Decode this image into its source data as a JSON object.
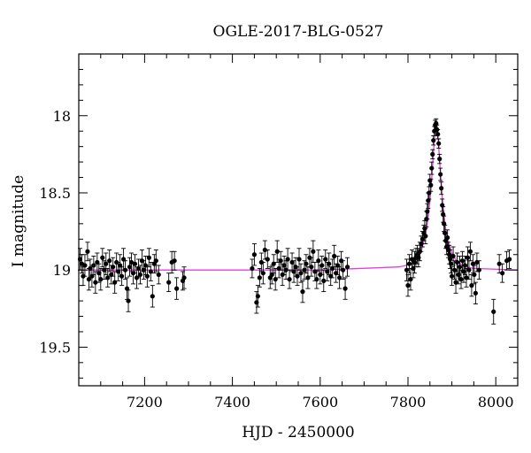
{
  "chart_data": {
    "type": "scatter",
    "title": "OGLE-2017-BLG-0527",
    "xlabel": "HJD - 2450000",
    "ylabel": "I magnitude",
    "xlim": [
      7050,
      8050
    ],
    "ylim": [
      19.75,
      17.6
    ],
    "y_inverted": true,
    "grid": false,
    "xticks": [
      7200,
      7400,
      7600,
      7800,
      8000
    ],
    "yticks": [
      18,
      18.5,
      19,
      19.5
    ],
    "colors": {
      "points": "#000000",
      "model": "#e040e0",
      "axes": "#000000"
    },
    "model_curve": {
      "baseline": 19.0,
      "x": [
        7050,
        7600,
        7780,
        7810,
        7820,
        7830,
        7840,
        7845,
        7850,
        7855,
        7860,
        7863,
        7866,
        7870,
        7875,
        7880,
        7885,
        7890,
        7900,
        7910,
        7920,
        7930,
        7950,
        8050
      ],
      "y": [
        19.0,
        19.0,
        18.98,
        18.96,
        18.93,
        18.88,
        18.77,
        18.68,
        18.55,
        18.37,
        18.15,
        18.05,
        18.05,
        18.2,
        18.42,
        18.6,
        18.72,
        18.8,
        18.89,
        18.94,
        18.96,
        18.98,
        18.99,
        19.0
      ]
    },
    "series": [
      {
        "points": [
          [
            7053,
            18.93,
            0.07
          ],
          [
            7057,
            18.96,
            0.06
          ],
          [
            7060,
            19.04,
            0.06
          ],
          [
            7064,
            18.97,
            0.07
          ],
          [
            7070,
            18.88,
            0.06
          ],
          [
            7073,
            19.06,
            0.07
          ],
          [
            7076,
            18.99,
            0.06
          ],
          [
            7080,
            19.04,
            0.07
          ],
          [
            7084,
            18.97,
            0.06
          ],
          [
            7088,
            19.08,
            0.07
          ],
          [
            7092,
            18.95,
            0.06
          ],
          [
            7096,
            19.02,
            0.06
          ],
          [
            7100,
            19.06,
            0.07
          ],
          [
            7104,
            18.92,
            0.06
          ],
          [
            7108,
            19.0,
            0.06
          ],
          [
            7112,
            18.96,
            0.07
          ],
          [
            7116,
            19.05,
            0.06
          ],
          [
            7120,
            18.94,
            0.07
          ],
          [
            7124,
            19.03,
            0.06
          ],
          [
            7128,
            18.98,
            0.06
          ],
          [
            7132,
            19.08,
            0.07
          ],
          [
            7136,
            18.95,
            0.06
          ],
          [
            7140,
            19.01,
            0.06
          ],
          [
            7144,
            18.97,
            0.07
          ],
          [
            7148,
            19.04,
            0.06
          ],
          [
            7152,
            18.93,
            0.07
          ],
          [
            7156,
            19.0,
            0.06
          ],
          [
            7160,
            19.12,
            0.07
          ],
          [
            7163,
            19.2,
            0.07
          ],
          [
            7166,
            18.98,
            0.06
          ],
          [
            7170,
            18.95,
            0.06
          ],
          [
            7174,
            19.02,
            0.07
          ],
          [
            7178,
            18.96,
            0.06
          ],
          [
            7182,
            19.05,
            0.07
          ],
          [
            7186,
            18.99,
            0.06
          ],
          [
            7190,
            19.03,
            0.06
          ],
          [
            7194,
            18.94,
            0.07
          ],
          [
            7198,
            19.0,
            0.06
          ],
          [
            7202,
            18.97,
            0.06
          ],
          [
            7206,
            19.04,
            0.07
          ],
          [
            7210,
            18.92,
            0.06
          ],
          [
            7214,
            19.01,
            0.06
          ],
          [
            7218,
            19.17,
            0.07
          ],
          [
            7222,
            18.96,
            0.06
          ],
          [
            7226,
            18.94,
            0.07
          ],
          [
            7232,
            19.03,
            0.06
          ],
          [
            7255,
            19.08,
            0.06
          ],
          [
            7262,
            18.95,
            0.07
          ],
          [
            7268,
            18.94,
            0.06
          ],
          [
            7273,
            19.12,
            0.07
          ],
          [
            7287,
            19.07,
            0.06
          ],
          [
            7290,
            19.05,
            0.07
          ],
          [
            7445,
            18.99,
            0.06
          ],
          [
            7450,
            18.9,
            0.07
          ],
          [
            7455,
            19.21,
            0.07
          ],
          [
            7458,
            19.17,
            0.07
          ],
          [
            7462,
            19.05,
            0.06
          ],
          [
            7466,
            18.95,
            0.06
          ],
          [
            7470,
            19.02,
            0.07
          ],
          [
            7474,
            18.87,
            0.06
          ],
          [
            7480,
            18.93,
            0.06
          ],
          [
            7486,
            19.05,
            0.07
          ],
          [
            7490,
            19.03,
            0.06
          ],
          [
            7494,
            18.96,
            0.06
          ],
          [
            7498,
            19.06,
            0.07
          ],
          [
            7502,
            18.88,
            0.07
          ],
          [
            7506,
            18.99,
            0.06
          ],
          [
            7510,
            18.94,
            0.06
          ],
          [
            7514,
            19.03,
            0.07
          ],
          [
            7518,
            18.97,
            0.06
          ],
          [
            7522,
            19.0,
            0.06
          ],
          [
            7526,
            18.93,
            0.07
          ],
          [
            7530,
            19.06,
            0.06
          ],
          [
            7536,
            18.95,
            0.06
          ],
          [
            7540,
            19.01,
            0.07
          ],
          [
            7544,
            18.98,
            0.06
          ],
          [
            7548,
            19.04,
            0.06
          ],
          [
            7552,
            18.93,
            0.07
          ],
          [
            7556,
            19.02,
            0.06
          ],
          [
            7560,
            19.14,
            0.07
          ],
          [
            7564,
            19.0,
            0.06
          ],
          [
            7568,
            18.96,
            0.06
          ],
          [
            7572,
            19.05,
            0.07
          ],
          [
            7576,
            18.92,
            0.06
          ],
          [
            7580,
            18.98,
            0.06
          ],
          [
            7584,
            18.88,
            0.07
          ],
          [
            7588,
            19.01,
            0.06
          ],
          [
            7592,
            19.06,
            0.06
          ],
          [
            7596,
            18.94,
            0.07
          ],
          [
            7600,
            19.03,
            0.06
          ],
          [
            7604,
            18.97,
            0.06
          ],
          [
            7608,
            19.07,
            0.07
          ],
          [
            7612,
            18.93,
            0.06
          ],
          [
            7616,
            19.01,
            0.06
          ],
          [
            7620,
            18.96,
            0.07
          ],
          [
            7624,
            19.04,
            0.06
          ],
          [
            7628,
            18.99,
            0.06
          ],
          [
            7632,
            18.91,
            0.07
          ],
          [
            7636,
            19.02,
            0.06
          ],
          [
            7640,
            18.97,
            0.06
          ],
          [
            7644,
            19.05,
            0.07
          ],
          [
            7648,
            18.94,
            0.06
          ],
          [
            7652,
            19.0,
            0.06
          ],
          [
            7657,
            19.12,
            0.07
          ],
          [
            7662,
            18.98,
            0.06
          ],
          [
            7797,
            19.0,
            0.07
          ],
          [
            7800,
            19.1,
            0.07
          ],
          [
            7803,
            18.96,
            0.06
          ],
          [
            7806,
            19.06,
            0.07
          ],
          [
            7809,
            18.93,
            0.06
          ],
          [
            7812,
            18.99,
            0.06
          ],
          [
            7815,
            18.95,
            0.07
          ],
          [
            7818,
            18.92,
            0.06
          ],
          [
            7821,
            18.9,
            0.06
          ],
          [
            7824,
            18.92,
            0.06
          ],
          [
            7827,
            18.88,
            0.06
          ],
          [
            7830,
            18.83,
            0.05
          ],
          [
            7833,
            18.8,
            0.05
          ],
          [
            7836,
            18.76,
            0.05
          ],
          [
            7838,
            18.73,
            0.05
          ],
          [
            7840,
            18.78,
            0.05
          ],
          [
            7842,
            18.67,
            0.05
          ],
          [
            7844,
            18.62,
            0.05
          ],
          [
            7846,
            18.55,
            0.05
          ],
          [
            7848,
            18.5,
            0.04
          ],
          [
            7850,
            18.42,
            0.04
          ],
          [
            7852,
            18.45,
            0.04
          ],
          [
            7854,
            18.34,
            0.04
          ],
          [
            7856,
            18.25,
            0.03
          ],
          [
            7858,
            18.16,
            0.03
          ],
          [
            7860,
            18.1,
            0.03
          ],
          [
            7862,
            18.06,
            0.03
          ],
          [
            7864,
            18.05,
            0.03
          ],
          [
            7866,
            18.09,
            0.03
          ],
          [
            7868,
            18.12,
            0.03
          ],
          [
            7870,
            18.18,
            0.03
          ],
          [
            7872,
            18.28,
            0.03
          ],
          [
            7874,
            18.38,
            0.04
          ],
          [
            7876,
            18.47,
            0.04
          ],
          [
            7878,
            18.58,
            0.04
          ],
          [
            7880,
            18.64,
            0.05
          ],
          [
            7882,
            18.7,
            0.05
          ],
          [
            7884,
            18.76,
            0.05
          ],
          [
            7886,
            18.81,
            0.05
          ],
          [
            7888,
            18.85,
            0.05
          ],
          [
            7890,
            18.79,
            0.05
          ],
          [
            7892,
            18.87,
            0.05
          ],
          [
            7894,
            18.9,
            0.06
          ],
          [
            7896,
            18.93,
            0.06
          ],
          [
            7898,
            18.96,
            0.06
          ],
          [
            7900,
            19.04,
            0.06
          ],
          [
            7903,
            18.91,
            0.06
          ],
          [
            7906,
            19.0,
            0.06
          ],
          [
            7909,
            19.08,
            0.07
          ],
          [
            7912,
            18.95,
            0.06
          ],
          [
            7915,
            19.03,
            0.06
          ],
          [
            7918,
            18.98,
            0.07
          ],
          [
            7921,
            19.06,
            0.06
          ],
          [
            7924,
            18.94,
            0.06
          ],
          [
            7927,
            19.01,
            0.07
          ],
          [
            7930,
            18.97,
            0.06
          ],
          [
            7933,
            19.05,
            0.06
          ],
          [
            7936,
            18.92,
            0.07
          ],
          [
            7939,
            19.0,
            0.06
          ],
          [
            7942,
            18.88,
            0.06
          ],
          [
            7945,
            19.1,
            0.07
          ],
          [
            7948,
            18.96,
            0.06
          ],
          [
            7951,
            19.03,
            0.06
          ],
          [
            7954,
            19.15,
            0.07
          ],
          [
            7957,
            18.95,
            0.06
          ],
          [
            7962,
            19.0,
            0.06
          ],
          [
            7995,
            19.27,
            0.08
          ],
          [
            8008,
            18.96,
            0.06
          ],
          [
            8015,
            19.02,
            0.06
          ],
          [
            8025,
            18.94,
            0.06
          ],
          [
            8031,
            18.93,
            0.06
          ]
        ]
      }
    ]
  }
}
